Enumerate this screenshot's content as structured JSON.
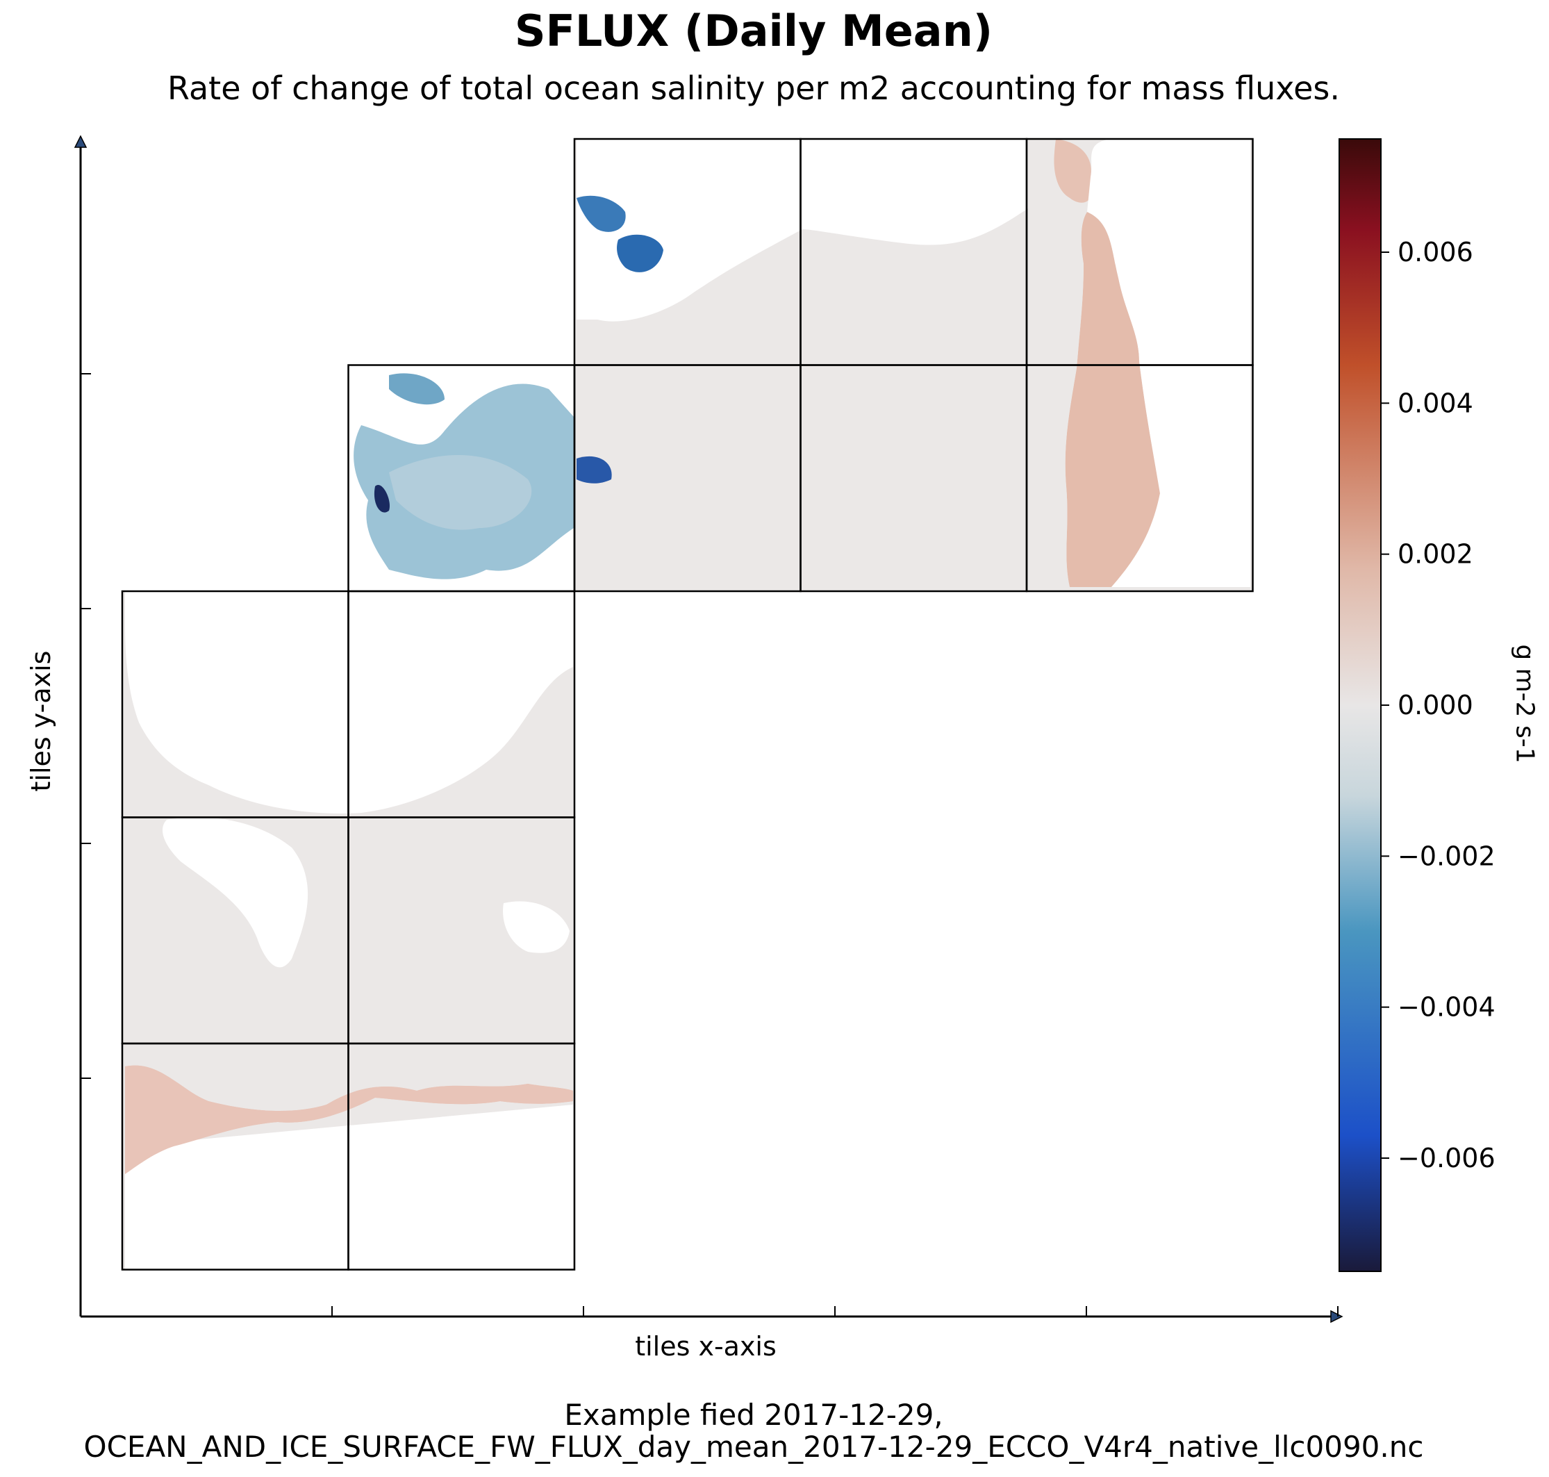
{
  "title": "SFLUX (Daily Mean)",
  "subtitle": "Rate of change of total ocean salinity per m2 accounting for mass fluxes.",
  "footer_line1": "Example fied 2017-12-29,",
  "footer_line2": "OCEAN_AND_ICE_SURFACE_FW_FLUX_day_mean_2017-12-29_ECCO_V4r4_native_llc0090.nc",
  "chart_data": {
    "type": "heatmap",
    "title": "SFLUX (Daily Mean)",
    "subtitle": "Rate of change of total ocean salinity per m2 accounting for mass fluxes.",
    "xlabel": "tiles x-axis",
    "ylabel": "tiles y-axis",
    "colorbar": {
      "label": "g m-2 s-1",
      "range": [
        -0.0075,
        0.0075
      ],
      "ticks": [
        {
          "value": 0.006,
          "label": "0.006"
        },
        {
          "value": 0.004,
          "label": "0.004"
        },
        {
          "value": 0.002,
          "label": "0.002"
        },
        {
          "value": 0.0,
          "label": "0.000"
        },
        {
          "value": -0.002,
          "label": "−0.002"
        },
        {
          "value": -0.004,
          "label": "−0.004"
        },
        {
          "value": -0.006,
          "label": "−0.006"
        }
      ],
      "colors": [
        "#1a1a3a",
        "#1c50c8",
        "#4a96c0",
        "#c8d6dc",
        "#e8e6e6",
        "#e0b8a8",
        "#c0502a",
        "#8a1020",
        "#3a0a0a"
      ]
    },
    "grid": false,
    "tiles": [
      {
        "row": 0,
        "col": 2
      },
      {
        "row": 0,
        "col": 3
      },
      {
        "row": 0,
        "col": 4
      },
      {
        "row": 1,
        "col": 1
      },
      {
        "row": 1,
        "col": 2
      },
      {
        "row": 1,
        "col": 3
      },
      {
        "row": 1,
        "col": 4
      },
      {
        "row": 2,
        "col": 0
      },
      {
        "row": 2,
        "col": 1
      },
      {
        "row": 3,
        "col": 0
      },
      {
        "row": 3,
        "col": 1
      },
      {
        "row": 4,
        "col": 0
      },
      {
        "row": 4,
        "col": 1
      }
    ],
    "date": "2017-12-29"
  }
}
